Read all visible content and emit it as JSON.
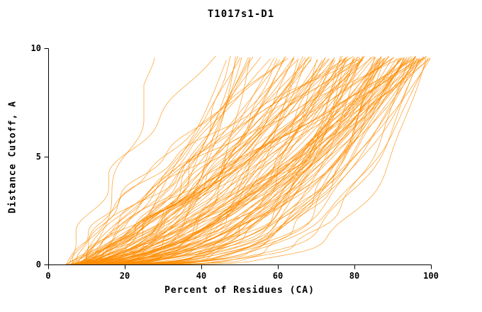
{
  "chart_data": {
    "type": "line",
    "title": "T1017s1-D1",
    "xlabel": "Percent of Residues (CA)",
    "ylabel": "Distance Cutoff, A",
    "xlim": [
      0,
      100
    ],
    "ylim": [
      0,
      10
    ],
    "xticks": [
      "0",
      "20",
      "40",
      "60",
      "80",
      "100"
    ],
    "xtick_values": [
      0,
      20,
      40,
      60,
      80,
      100
    ],
    "yticks": [
      "0",
      "5",
      "10"
    ],
    "ytick_values": [
      0,
      5,
      10
    ],
    "line_color": "#ff8c00",
    "axis_color": "#000000",
    "background_color": "#ffffff",
    "legend": "none",
    "grid": false,
    "description": "Ensemble of cumulative distance-cutoff curves (GDT-style plot): each orange curve shows, for one model, the percent of CA residues (x) superimposable within a given distance cutoff in Angstroms (y). Curves rise monotonically from about 5-10% at cutoff 0 and fan out, terminating near cutoff 9.6 A at percents between roughly 27% and 100%, with a dense band hugging low cutoffs between 10% and 60%.",
    "curve_generator": {
      "n_curves": 130,
      "seed": 42,
      "x_start_range": [
        4.5,
        9.5
      ],
      "x_end_range": [
        26,
        100
      ],
      "x_end_skew": 0.42,
      "x_exponent_range": [
        0.5,
        2.0
      ],
      "y_exponent_range": [
        1.1,
        3.8
      ],
      "steep_x_end_threshold": 38,
      "steep_y_exponent_range": [
        0.75,
        1.5
      ],
      "wiggle_amp_range": [
        0.4,
        2.2
      ],
      "wiggle_freq_range": [
        2,
        6
      ],
      "y_top_range": [
        9.45,
        9.65
      ],
      "samples_per_curve": 70,
      "stroke_width": 0.7,
      "stroke_alpha": 0.85
    }
  }
}
